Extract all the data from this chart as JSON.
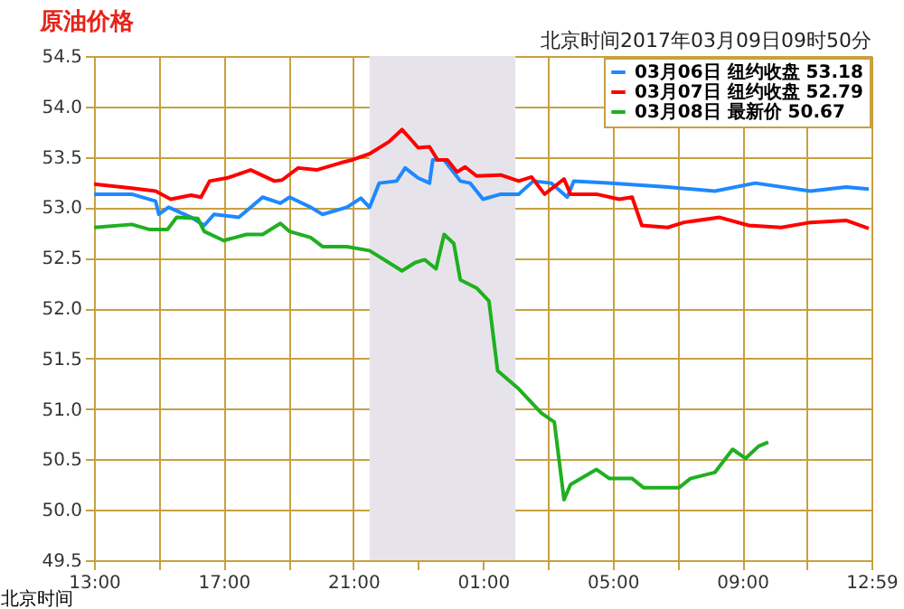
{
  "chart_data": {
    "type": "line",
    "title": "原油价格",
    "subtitle": "北京时间2017年03月09日09时50分",
    "xlabel": "北京时间",
    "xlim": [
      "2017-03-08T13:00",
      "2017-03-09T12:59"
    ],
    "ylim": [
      49.5,
      54.5
    ],
    "xticks": [
      {
        "value": "2017-03-08T13:00",
        "label": "13:00"
      },
      {
        "value": "2017-03-08T15:00",
        "label": null
      },
      {
        "value": "2017-03-08T17:00",
        "label": "17:00"
      },
      {
        "value": "2017-03-08T19:00",
        "label": null
      },
      {
        "value": "2017-03-08T21:00",
        "label": "21:00"
      },
      {
        "value": "2017-03-08T23:00",
        "label": null
      },
      {
        "value": "2017-03-09T01:00",
        "label": "01:00"
      },
      {
        "value": "2017-03-09T03:00",
        "label": null
      },
      {
        "value": "2017-03-09T05:00",
        "label": "05:00"
      },
      {
        "value": "2017-03-09T07:00",
        "label": null
      },
      {
        "value": "2017-03-09T09:00",
        "label": "09:00"
      },
      {
        "value": "2017-03-09T11:00",
        "label": null
      },
      {
        "value": "2017-03-09T12:59",
        "label": "12:59"
      }
    ],
    "yticks": [
      49.5,
      {
        "value": 50,
        "label": "50.0"
      },
      50.5,
      {
        "value": 51,
        "label": "51.0"
      },
      51.5,
      {
        "value": 52,
        "label": "52.0"
      },
      52.5,
      {
        "value": 53,
        "label": "53.0"
      },
      53.5,
      {
        "value": 54,
        "label": "54.0"
      },
      54.5
    ],
    "grid": true,
    "legend": "top right",
    "marker": "none",
    "line_style": "solid",
    "bands": [
      {
        "axis": "x",
        "from": "2017-03-08T21:30",
        "to": "2017-03-09T02:00",
        "color": "#e6e4ea"
      }
    ],
    "series": [
      {
        "name": "03月06日 纽约收盘 53.18",
        "color": "#1e88ff",
        "x": [
          "2017-03-08T13:00",
          "2017-03-08T14:10",
          "2017-03-08T14:54",
          "2017-03-08T15:00",
          "2017-03-08T15:18",
          "2017-03-08T16:00",
          "2017-03-08T16:24",
          "2017-03-08T16:42",
          "2017-03-08T17:28",
          "2017-03-08T17:50",
          "2017-03-08T18:12",
          "2017-03-08T18:45",
          "2017-03-08T19:02",
          "2017-03-08T19:41",
          "2017-03-08T20:03",
          "2017-03-08T20:48",
          "2017-03-08T21:14",
          "2017-03-08T21:30",
          "2017-03-08T21:48",
          "2017-03-08T22:20",
          "2017-03-08T22:36",
          "2017-03-08T23:00",
          "2017-03-08T23:21",
          "2017-03-08T23:27",
          "2017-03-08T23:48",
          "2017-03-09T00:18",
          "2017-03-09T00:36",
          "2017-03-09T01:00",
          "2017-03-09T01:33",
          "2017-03-09T02:06",
          "2017-03-09T02:33",
          "2017-03-09T03:06",
          "2017-03-09T03:36",
          "2017-03-09T03:48",
          "2017-03-09T04:51",
          "2017-03-09T06:42",
          "2017-03-09T08:09",
          "2017-03-09T09:24",
          "2017-03-09T11:06",
          "2017-03-09T12:12",
          "2017-03-09T12:54"
        ],
        "values": [
          53.13,
          53.13,
          53.06,
          52.93,
          53.0,
          52.9,
          52.82,
          52.93,
          52.9,
          53.0,
          53.1,
          53.04,
          53.1,
          53.0,
          52.93,
          53.0,
          53.09,
          53.0,
          53.24,
          53.26,
          53.39,
          53.29,
          53.24,
          53.47,
          53.47,
          53.26,
          53.24,
          53.08,
          53.13,
          53.13,
          53.26,
          53.24,
          53.1,
          53.26,
          53.24,
          53.2,
          53.16,
          53.24,
          53.16,
          53.2,
          53.18
        ]
      },
      {
        "name": "03月07日 纽约收盘 52.79",
        "color": "#ff0000",
        "x": [
          "2017-03-08T13:00",
          "2017-03-08T14:10",
          "2017-03-08T14:54",
          "2017-03-08T15:22",
          "2017-03-08T16:00",
          "2017-03-08T16:18",
          "2017-03-08T16:34",
          "2017-03-08T17:06",
          "2017-03-08T17:50",
          "2017-03-08T18:34",
          "2017-03-08T18:48",
          "2017-03-08T19:18",
          "2017-03-08T19:52",
          "2017-03-08T20:36",
          "2017-03-08T20:58",
          "2017-03-08T21:30",
          "2017-03-08T22:06",
          "2017-03-08T22:30",
          "2017-03-08T22:42",
          "2017-03-08T23:00",
          "2017-03-08T23:21",
          "2017-03-08T23:36",
          "2017-03-08T23:54",
          "2017-03-09T00:12",
          "2017-03-09T00:27",
          "2017-03-09T00:48",
          "2017-03-09T01:33",
          "2017-03-09T02:06",
          "2017-03-09T02:30",
          "2017-03-09T02:54",
          "2017-03-09T03:18",
          "2017-03-09T03:30",
          "2017-03-09T03:42",
          "2017-03-09T04:30",
          "2017-03-09T05:12",
          "2017-03-09T05:36",
          "2017-03-09T05:54",
          "2017-03-09T06:42",
          "2017-03-09T07:12",
          "2017-03-09T08:18",
          "2017-03-09T09:12",
          "2017-03-09T10:12",
          "2017-03-09T11:06",
          "2017-03-09T12:12",
          "2017-03-09T12:54"
        ],
        "values": [
          53.23,
          53.19,
          53.16,
          53.08,
          53.12,
          53.1,
          53.26,
          53.29,
          53.37,
          53.26,
          53.27,
          53.39,
          53.37,
          53.44,
          53.47,
          53.53,
          53.65,
          53.77,
          53.7,
          53.59,
          53.6,
          53.47,
          53.47,
          53.35,
          53.4,
          53.31,
          53.32,
          53.26,
          53.3,
          53.13,
          53.23,
          53.28,
          53.13,
          53.13,
          53.08,
          53.1,
          52.82,
          52.8,
          52.85,
          52.9,
          52.82,
          52.8,
          52.85,
          52.87,
          52.79
        ]
      },
      {
        "name": "03月08日 最新价 50.67",
        "color": "#1fb01f",
        "x": [
          "2017-03-08T13:00",
          "2017-03-08T14:10",
          "2017-03-08T14:42",
          "2017-03-08T15:16",
          "2017-03-08T15:33",
          "2017-03-08T16:12",
          "2017-03-08T16:24",
          "2017-03-08T17:00",
          "2017-03-08T17:42",
          "2017-03-08T18:12",
          "2017-03-08T18:45",
          "2017-03-08T19:02",
          "2017-03-08T19:41",
          "2017-03-08T20:03",
          "2017-03-08T20:48",
          "2017-03-08T21:30",
          "2017-03-08T22:06",
          "2017-03-08T22:30",
          "2017-03-08T22:54",
          "2017-03-08T23:12",
          "2017-03-08T23:33",
          "2017-03-08T23:48",
          "2017-03-09T00:06",
          "2017-03-09T00:18",
          "2017-03-09T00:48",
          "2017-03-09T01:11",
          "2017-03-09T01:27",
          "2017-03-09T02:06",
          "2017-03-09T02:48",
          "2017-03-09T03:12",
          "2017-03-09T03:30",
          "2017-03-09T03:42",
          "2017-03-09T04:30",
          "2017-03-09T04:54",
          "2017-03-09T05:36",
          "2017-03-09T05:57",
          "2017-03-09T07:03",
          "2017-03-09T07:24",
          "2017-03-09T08:09",
          "2017-03-09T08:42",
          "2017-03-09T09:06",
          "2017-03-09T09:30",
          "2017-03-09T09:48"
        ],
        "values": [
          52.8,
          52.83,
          52.78,
          52.78,
          52.9,
          52.89,
          52.76,
          52.67,
          52.73,
          52.73,
          52.84,
          52.76,
          52.7,
          52.61,
          52.61,
          52.57,
          52.45,
          52.37,
          52.45,
          52.48,
          52.39,
          52.73,
          52.64,
          52.28,
          52.2,
          52.07,
          51.38,
          51.2,
          50.96,
          50.87,
          50.1,
          50.25,
          50.4,
          50.31,
          50.31,
          50.22,
          50.22,
          50.31,
          50.37,
          50.6,
          50.51,
          50.63,
          50.67
        ]
      }
    ]
  }
}
